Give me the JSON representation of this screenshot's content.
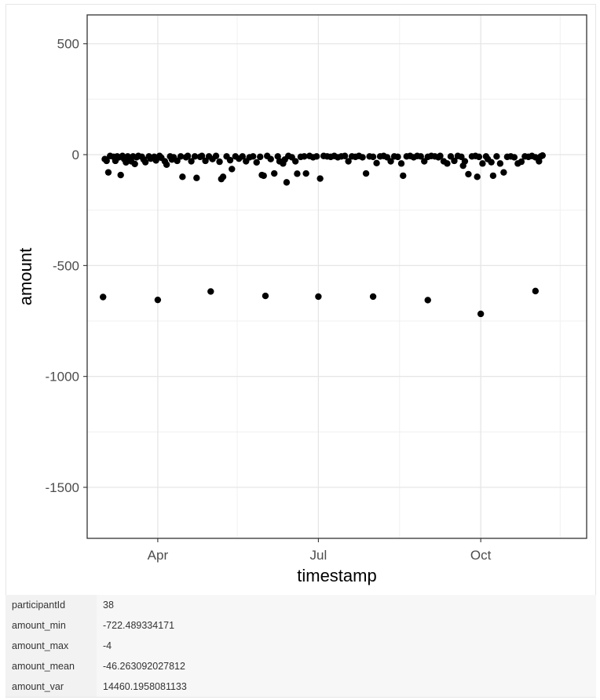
{
  "chart_data": {
    "type": "scatter",
    "title": "",
    "xlabel": "timestamp",
    "ylabel": "amount",
    "x_axis_type": "date",
    "x_range": [
      "2022-02-20",
      "2022-11-30"
    ],
    "x_ticks": [
      {
        "date": "2022-04-01",
        "label": "Apr"
      },
      {
        "date": "2022-07-01",
        "label": "Jul"
      },
      {
        "date": "2022-10-01",
        "label": "Oct"
      }
    ],
    "y_range": [
      -1730,
      630
    ],
    "y_ticks": [
      500,
      0,
      -500,
      -1000,
      -1500
    ],
    "y_tick_labels": [
      "500",
      "0",
      "-500",
      "-1000",
      "-1500"
    ],
    "grid": true,
    "legend": "none",
    "point_color": "#000000",
    "points": [
      [
        "2022-03-01",
        -642
      ],
      [
        "2022-04-01",
        -655
      ],
      [
        "2022-05-01",
        -617
      ],
      [
        "2022-06-01",
        -637
      ],
      [
        "2022-07-01",
        -640
      ],
      [
        "2022-08-01",
        -640
      ],
      [
        "2022-09-01",
        -656
      ],
      [
        "2022-10-01",
        -718
      ],
      [
        "2022-11-01",
        -615
      ],
      [
        "2022-03-02",
        -20
      ],
      [
        "2022-03-03",
        -28
      ],
      [
        "2022-03-04",
        -80
      ],
      [
        "2022-03-05",
        -6
      ],
      [
        "2022-03-07",
        -10
      ],
      [
        "2022-03-08",
        -28
      ],
      [
        "2022-03-09",
        -8
      ],
      [
        "2022-03-10",
        -12
      ],
      [
        "2022-03-11",
        -92
      ],
      [
        "2022-03-12",
        -6
      ],
      [
        "2022-03-13",
        -20
      ],
      [
        "2022-03-14",
        -35
      ],
      [
        "2022-03-15",
        -8
      ],
      [
        "2022-03-16",
        -18
      ],
      [
        "2022-03-17",
        -30
      ],
      [
        "2022-03-18",
        -8
      ],
      [
        "2022-03-19",
        -42
      ],
      [
        "2022-03-20",
        -12
      ],
      [
        "2022-03-21",
        -6
      ],
      [
        "2022-03-23",
        -10
      ],
      [
        "2022-03-24",
        -22
      ],
      [
        "2022-03-25",
        -34
      ],
      [
        "2022-03-27",
        -8
      ],
      [
        "2022-03-28",
        -18
      ],
      [
        "2022-03-30",
        -10
      ],
      [
        "2022-03-31",
        -26
      ],
      [
        "2022-04-02",
        -6
      ],
      [
        "2022-04-03",
        -14
      ],
      [
        "2022-04-05",
        -30
      ],
      [
        "2022-04-06",
        -45
      ],
      [
        "2022-04-08",
        -8
      ],
      [
        "2022-04-09",
        -22
      ],
      [
        "2022-04-10",
        -12
      ],
      [
        "2022-04-12",
        -28
      ],
      [
        "2022-04-14",
        -8
      ],
      [
        "2022-04-15",
        -100
      ],
      [
        "2022-04-17",
        -12
      ],
      [
        "2022-04-18",
        -6
      ],
      [
        "2022-04-20",
        -30
      ],
      [
        "2022-04-22",
        -8
      ],
      [
        "2022-04-23",
        -105
      ],
      [
        "2022-04-25",
        -10
      ],
      [
        "2022-04-26",
        -6
      ],
      [
        "2022-04-28",
        -28
      ],
      [
        "2022-04-30",
        -8
      ],
      [
        "2022-05-02",
        -20
      ],
      [
        "2022-05-04",
        -6
      ],
      [
        "2022-05-06",
        -32
      ],
      [
        "2022-05-07",
        -110
      ],
      [
        "2022-05-08",
        -100
      ],
      [
        "2022-05-10",
        -8
      ],
      [
        "2022-05-12",
        -25
      ],
      [
        "2022-05-13",
        -65
      ],
      [
        "2022-05-15",
        -8
      ],
      [
        "2022-05-17",
        -18
      ],
      [
        "2022-05-19",
        -8
      ],
      [
        "2022-05-21",
        -30
      ],
      [
        "2022-05-23",
        -12
      ],
      [
        "2022-05-25",
        -8
      ],
      [
        "2022-05-27",
        -35
      ],
      [
        "2022-05-29",
        -10
      ],
      [
        "2022-05-30",
        -92
      ],
      [
        "2022-05-31",
        -95
      ],
      [
        "2022-06-02",
        -6
      ],
      [
        "2022-06-04",
        -20
      ],
      [
        "2022-06-06",
        -85
      ],
      [
        "2022-06-08",
        -8
      ],
      [
        "2022-06-09",
        -30
      ],
      [
        "2022-06-11",
        -40
      ],
      [
        "2022-06-12",
        -22
      ],
      [
        "2022-06-13",
        -125
      ],
      [
        "2022-06-14",
        -6
      ],
      [
        "2022-06-16",
        -12
      ],
      [
        "2022-06-18",
        -30
      ],
      [
        "2022-06-19",
        -86
      ],
      [
        "2022-06-21",
        -10
      ],
      [
        "2022-06-23",
        -8
      ],
      [
        "2022-06-24",
        -85
      ],
      [
        "2022-06-26",
        -6
      ],
      [
        "2022-06-28",
        -12
      ],
      [
        "2022-06-30",
        -8
      ],
      [
        "2022-07-02",
        -108
      ],
      [
        "2022-07-04",
        -6
      ],
      [
        "2022-07-06",
        -8
      ],
      [
        "2022-07-08",
        -10
      ],
      [
        "2022-07-10",
        -6
      ],
      [
        "2022-07-12",
        -12
      ],
      [
        "2022-07-14",
        -8
      ],
      [
        "2022-07-16",
        -6
      ],
      [
        "2022-07-18",
        -30
      ],
      [
        "2022-07-20",
        -8
      ],
      [
        "2022-07-22",
        -10
      ],
      [
        "2022-07-24",
        -6
      ],
      [
        "2022-07-26",
        -12
      ],
      [
        "2022-07-28",
        -85
      ],
      [
        "2022-07-30",
        -8
      ],
      [
        "2022-08-01",
        -10
      ],
      [
        "2022-08-03",
        -38
      ],
      [
        "2022-08-05",
        -8
      ],
      [
        "2022-08-07",
        -6
      ],
      [
        "2022-08-09",
        -12
      ],
      [
        "2022-08-11",
        -30
      ],
      [
        "2022-08-13",
        -8
      ],
      [
        "2022-08-15",
        -10
      ],
      [
        "2022-08-17",
        -40
      ],
      [
        "2022-08-18",
        -95
      ],
      [
        "2022-08-20",
        -8
      ],
      [
        "2022-08-22",
        -6
      ],
      [
        "2022-08-24",
        -12
      ],
      [
        "2022-08-26",
        -6
      ],
      [
        "2022-08-28",
        -8
      ],
      [
        "2022-08-30",
        -30
      ],
      [
        "2022-09-01",
        -10
      ],
      [
        "2022-09-03",
        -6
      ],
      [
        "2022-09-05",
        -8
      ],
      [
        "2022-09-07",
        -12
      ],
      [
        "2022-09-08",
        -6
      ],
      [
        "2022-09-10",
        -30
      ],
      [
        "2022-09-12",
        -40
      ],
      [
        "2022-09-14",
        -8
      ],
      [
        "2022-09-16",
        -28
      ],
      [
        "2022-09-18",
        -6
      ],
      [
        "2022-09-20",
        -10
      ],
      [
        "2022-09-21",
        -50
      ],
      [
        "2022-09-22",
        -30
      ],
      [
        "2022-09-24",
        -88
      ],
      [
        "2022-09-26",
        -8
      ],
      [
        "2022-09-28",
        -6
      ],
      [
        "2022-09-29",
        -100
      ],
      [
        "2022-09-30",
        -10
      ],
      [
        "2022-10-02",
        -40
      ],
      [
        "2022-10-04",
        -8
      ],
      [
        "2022-10-05",
        -20
      ],
      [
        "2022-10-07",
        -34
      ],
      [
        "2022-10-08",
        -95
      ],
      [
        "2022-10-10",
        -8
      ],
      [
        "2022-10-12",
        -40
      ],
      [
        "2022-10-14",
        -80
      ],
      [
        "2022-10-16",
        -10
      ],
      [
        "2022-10-18",
        -8
      ],
      [
        "2022-10-20",
        -12
      ],
      [
        "2022-10-22",
        -40
      ],
      [
        "2022-10-24",
        -32
      ],
      [
        "2022-10-26",
        -8
      ],
      [
        "2022-10-28",
        -10
      ],
      [
        "2022-10-30",
        -6
      ],
      [
        "2022-11-01",
        -12
      ],
      [
        "2022-11-03",
        -30
      ],
      [
        "2022-11-04",
        -8
      ],
      [
        "2022-11-05",
        -4
      ]
    ]
  },
  "stats_table": [
    {
      "key": "participantId",
      "value": "38"
    },
    {
      "key": "amount_min",
      "value": "-722.489334171"
    },
    {
      "key": "amount_max",
      "value": "-4"
    },
    {
      "key": "amount_mean",
      "value": "-46.263092027812"
    },
    {
      "key": "amount_var",
      "value": "14460.1958081133"
    }
  ]
}
